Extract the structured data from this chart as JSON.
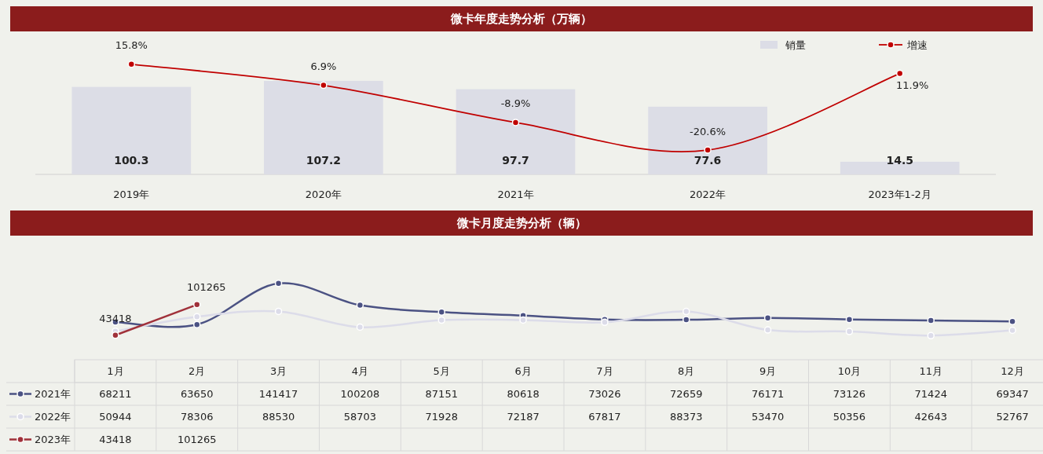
{
  "chart_data": [
    {
      "type": "bar",
      "title": "微卡年度走势分析（万辆）",
      "categories": [
        "2019年",
        "2020年",
        "2021年",
        "2022年",
        "2023年1-2月"
      ],
      "data_labels": true,
      "legend": "top right",
      "series": [
        {
          "name": "销量",
          "type": "bar",
          "color": "#dcdde6",
          "values": [
            100.3,
            107.2,
            97.7,
            77.6,
            14.5
          ]
        },
        {
          "name": "增速",
          "type": "line",
          "axis": "y2",
          "color": "#c00000",
          "marker": "circle",
          "value_labels": [
            "15.8%",
            "6.9%",
            "-8.9%",
            "-20.6%",
            "11.9%"
          ],
          "values": [
            15.8,
            6.9,
            -8.9,
            -20.6,
            11.9
          ]
        }
      ]
    },
    {
      "type": "line",
      "title": "微卡月度走势分析（辆）",
      "categories": [
        "1月",
        "2月",
        "3月",
        "4月",
        "5月",
        "6月",
        "7月",
        "8月",
        "9月",
        "10月",
        "11月",
        "12月"
      ],
      "data_labels": true,
      "annotations": [
        {
          "text": "43418",
          "x": "1月",
          "y": 43418
        },
        {
          "text": "101265",
          "x": "2月",
          "y": 101265
        }
      ],
      "legend": "bottom",
      "marker": "circle",
      "series": [
        {
          "name": "2021年",
          "color": "#4b5283",
          "values": [
            68211,
            63650,
            141417,
            100208,
            87151,
            80618,
            73026,
            72659,
            76171,
            73126,
            71424,
            69347
          ]
        },
        {
          "name": "2022年",
          "color": "#dcdce9",
          "values": [
            50944,
            78306,
            88530,
            58703,
            71928,
            72187,
            67817,
            88373,
            53470,
            50356,
            42643,
            52767
          ]
        },
        {
          "name": "2023年",
          "color": "#a0313a",
          "values": [
            43418,
            101265,
            null,
            null,
            null,
            null,
            null,
            null,
            null,
            null,
            null,
            null
          ]
        }
      ]
    }
  ]
}
